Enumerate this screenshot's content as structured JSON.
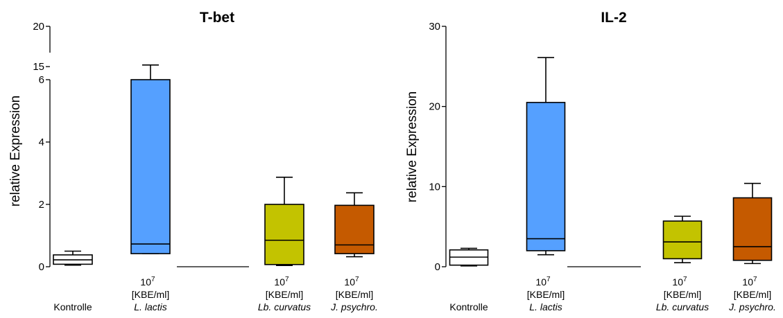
{
  "chart_data": [
    {
      "type": "box",
      "title": "T-bet",
      "ylabel": "relative Expression",
      "y_axis": {
        "broken": true,
        "lower_segment": {
          "range": [
            0,
            6
          ],
          "ticks": [
            0,
            2,
            4,
            6
          ]
        },
        "upper_segment": {
          "range": [
            14.5,
            20
          ],
          "ticks": [
            15,
            20
          ]
        }
      },
      "categories": [
        {
          "dose": "",
          "unit": "",
          "label": "Kontrolle",
          "italic": false
        },
        {
          "dose": "10",
          "exp": "7",
          "unit": "[KBE/ml]",
          "label": "L. lactis",
          "italic": true
        },
        {
          "dose": "",
          "unit": "",
          "label": "",
          "italic": false
        },
        {
          "dose": "10",
          "exp": "7",
          "unit": "[KBE/ml]",
          "label": "Lb. curvatus",
          "italic": true
        },
        {
          "dose": "10",
          "exp": "7",
          "unit": "[KBE/ml]",
          "label": "J. psychro.",
          "italic": true
        }
      ],
      "boxes": [
        {
          "min": 0.05,
          "q1": 0.08,
          "median": 0.22,
          "q3": 0.38,
          "max": 0.5,
          "color": "#ffffff"
        },
        {
          "min": 0.42,
          "q1": 0.42,
          "median": 0.73,
          "q3": 6.0,
          "max": 15.2,
          "color": "#55a0ff",
          "clipped_at": 6.0
        },
        {
          "empty": true
        },
        {
          "min": 0.04,
          "q1": 0.07,
          "median": 0.85,
          "q3": 2.0,
          "max": 2.87,
          "color": "#c3c300"
        },
        {
          "min": 0.32,
          "q1": 0.42,
          "median": 0.7,
          "q3": 1.97,
          "max": 2.37,
          "color": "#c55a00"
        }
      ]
    },
    {
      "type": "box",
      "title": "IL-2",
      "ylabel": "relative Expression",
      "y_axis": {
        "range": [
          0,
          30
        ],
        "ticks": [
          0,
          10,
          20,
          30
        ]
      },
      "categories": [
        {
          "dose": "",
          "unit": "",
          "label": "Kontrolle",
          "italic": false
        },
        {
          "dose": "10",
          "exp": "7",
          "unit": "[KBE/ml]",
          "label": "L. lactis",
          "italic": true
        },
        {
          "dose": "",
          "unit": "",
          "label": "",
          "italic": false
        },
        {
          "dose": "10",
          "exp": "7",
          "unit": "[KBE/ml]",
          "label": "Lb. curvatus",
          "italic": true
        },
        {
          "dose": "10",
          "exp": "7",
          "unit": "[KBE/ml]",
          "label": "J. psychro.",
          "italic": true
        }
      ],
      "boxes": [
        {
          "min": 0.1,
          "q1": 0.2,
          "median": 1.2,
          "q3": 2.1,
          "max": 2.3,
          "color": "#ffffff"
        },
        {
          "min": 1.5,
          "q1": 2.0,
          "median": 3.5,
          "q3": 20.5,
          "max": 26.1,
          "color": "#55a0ff"
        },
        {
          "empty": true
        },
        {
          "min": 0.5,
          "q1": 1.0,
          "median": 3.1,
          "q3": 5.7,
          "max": 6.3,
          "color": "#c3c300"
        },
        {
          "min": 0.4,
          "q1": 0.8,
          "median": 2.5,
          "q3": 8.6,
          "max": 10.4,
          "color": "#c55a00"
        }
      ]
    }
  ]
}
